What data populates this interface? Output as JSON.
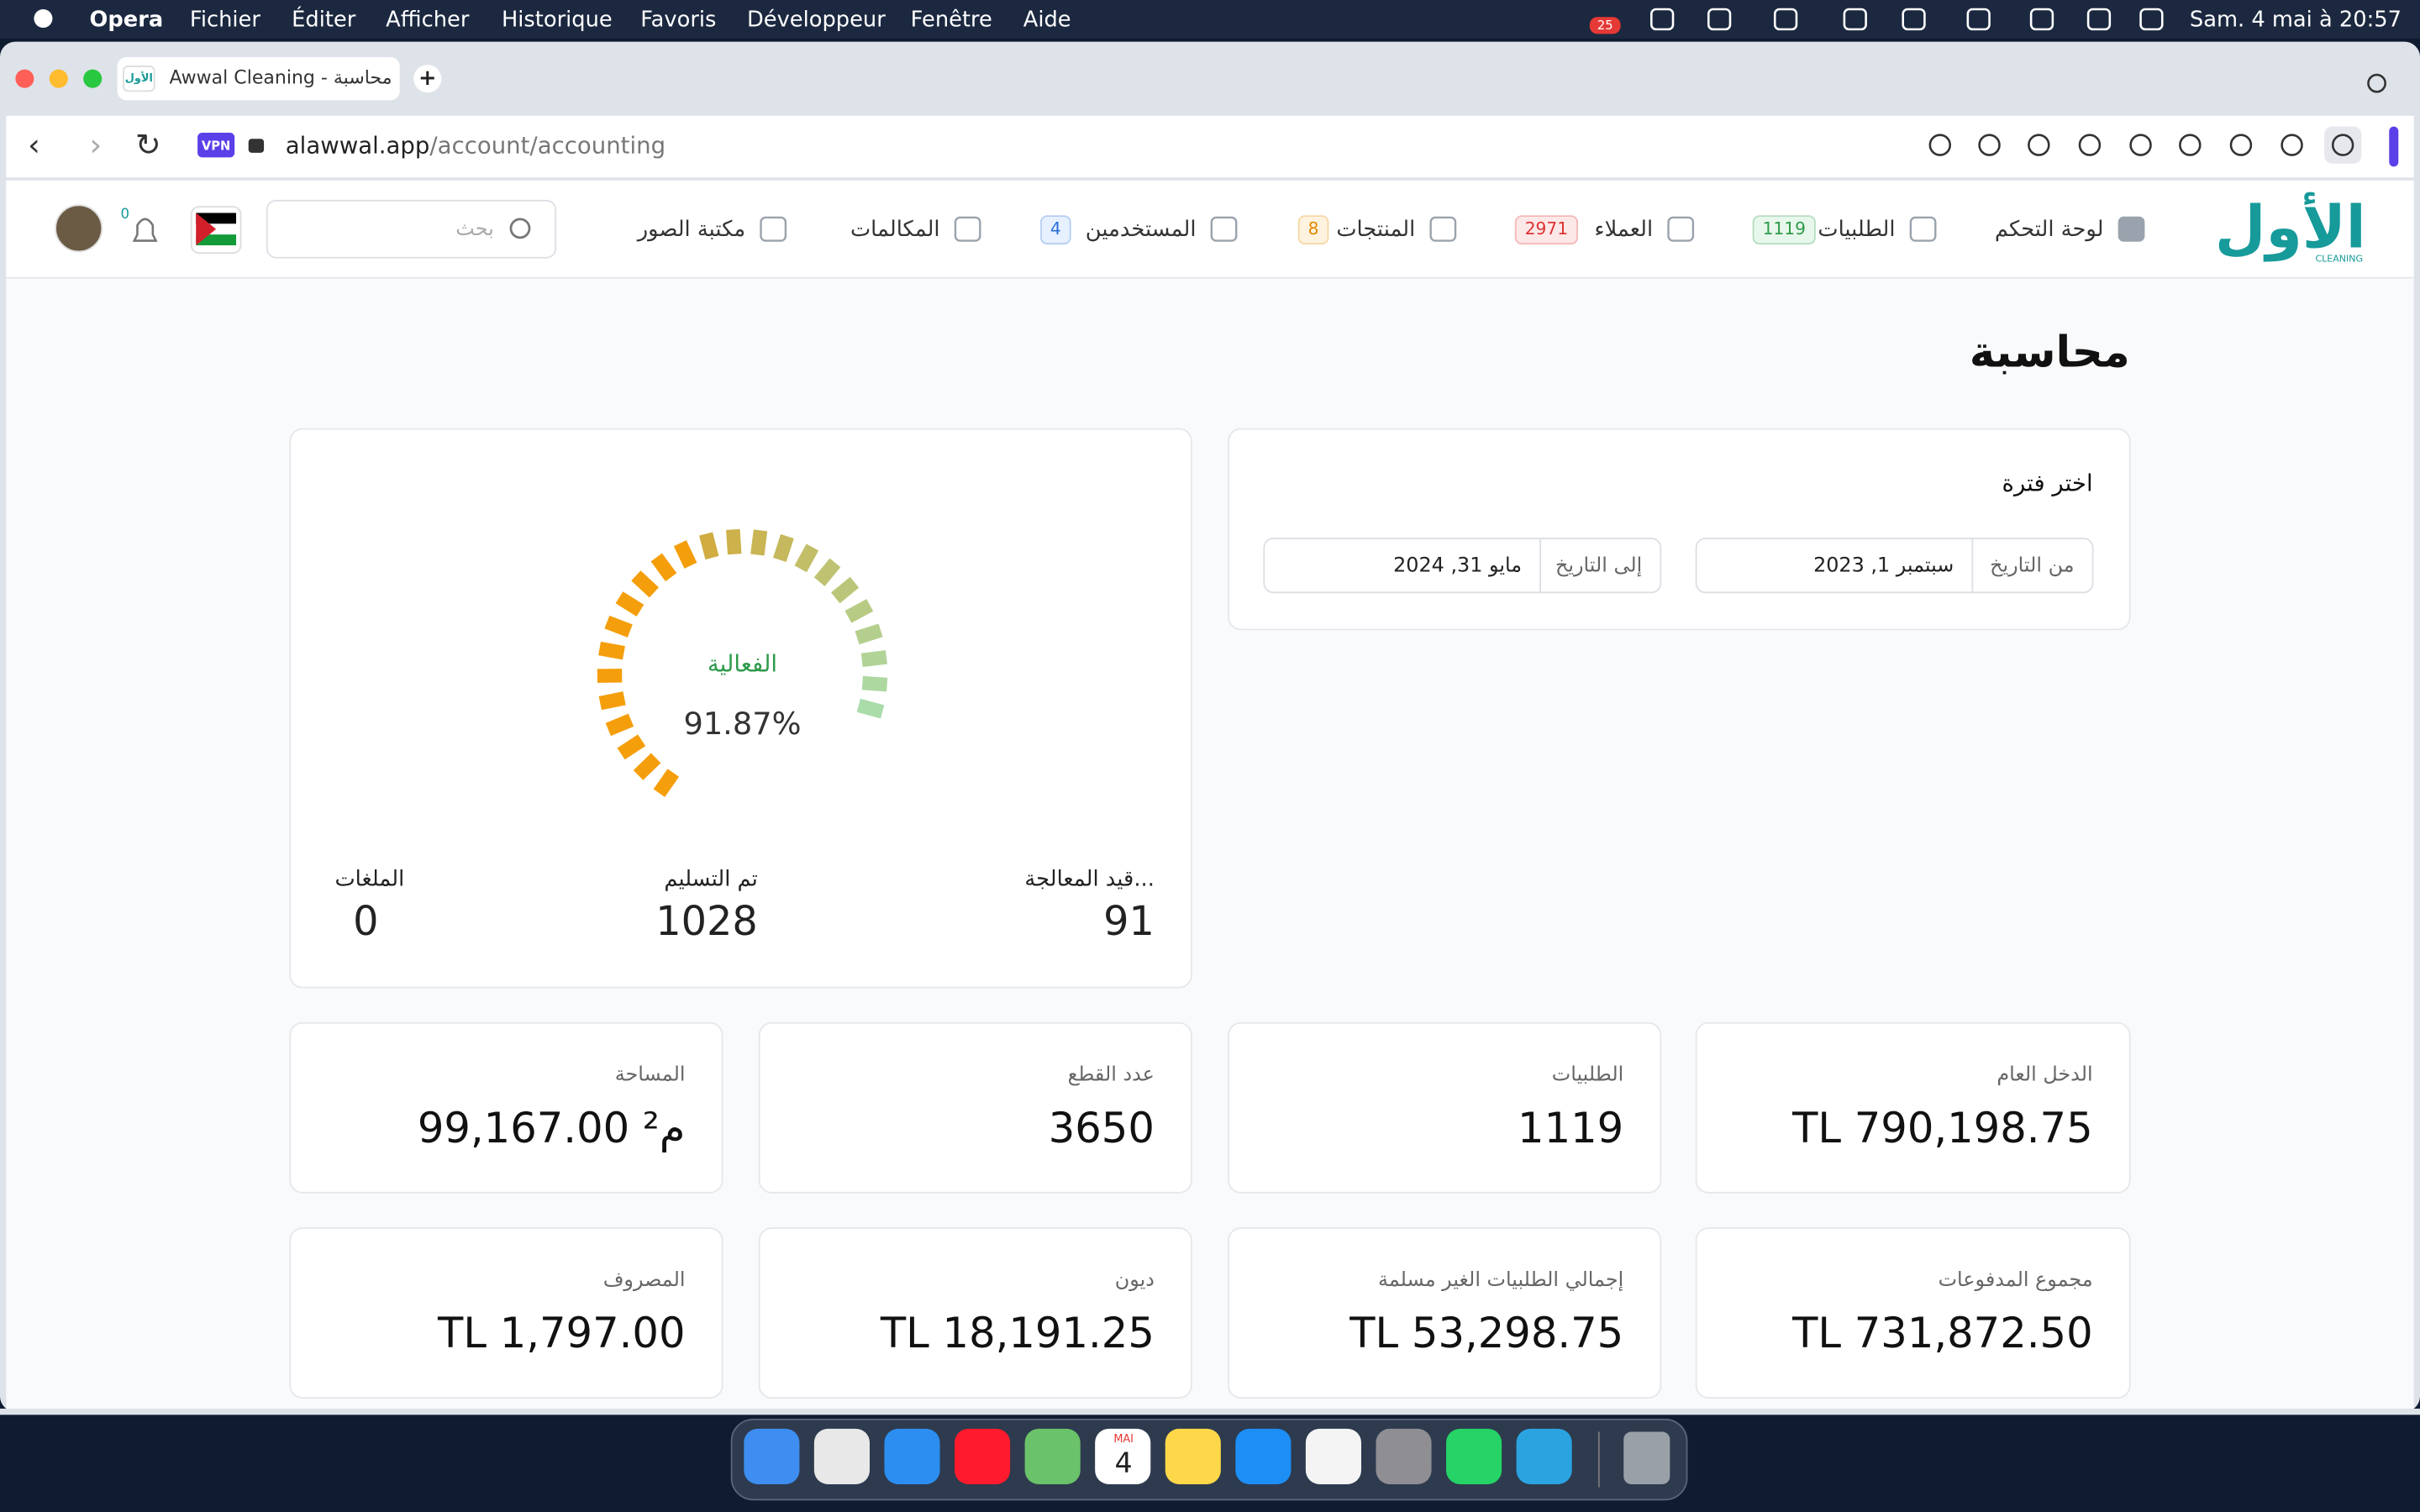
{
  "menubar": {
    "app": "Opera",
    "menus": [
      "Fichier",
      "Éditer",
      "Afficher",
      "Historique",
      "Favoris",
      "Développeur",
      "Fenêtre",
      "Aide"
    ],
    "clock": "Sam. 4 mai à 20:57",
    "badge": "25"
  },
  "browser": {
    "tab_icon": "الأول",
    "tab_title": "Awwal Cleaning - محاسبة",
    "vpn": "VPN",
    "domain": "alawwal.app",
    "path": "/account/accounting"
  },
  "nav": {
    "logo": "الأول",
    "logo_sub": "CLEANING",
    "items": [
      {
        "label": "لوحة التحكم"
      },
      {
        "label": "الطلبيات",
        "badge": "1119"
      },
      {
        "label": "العملاء",
        "badge": "2971"
      },
      {
        "label": "المنتجات",
        "badge": "8"
      },
      {
        "label": "المستخدمين",
        "badge": "4"
      },
      {
        "label": "المكالمات"
      },
      {
        "label": "مكتبة الصور"
      }
    ],
    "search": "بحث",
    "notifications": "0"
  },
  "page": {
    "title": "محاسبة",
    "period": {
      "title": "اختر فترة",
      "from_label": "من التاريخ",
      "from_value": "سبتمبر 1, 2023",
      "to_label": "إلى التاريخ",
      "to_value": "مايو 31, 2024"
    },
    "gauge": {
      "label": "الفعالية",
      "value": "91.87%",
      "stats": [
        {
          "label": "قيد المعالجة...",
          "value": "91"
        },
        {
          "label": "تم التسليم",
          "value": "1028"
        },
        {
          "label": "الملغات",
          "value": "0"
        }
      ]
    },
    "cards": [
      {
        "label": "الدخل العام",
        "value": "TL  790,198.75"
      },
      {
        "label": "الطلبيات",
        "value": "1119"
      },
      {
        "label": "عدد القطع",
        "value": "3650"
      },
      {
        "label": "المساحة",
        "value": "99,167.00 م²"
      },
      {
        "label": "مجموع المدفوعات",
        "value": "TL  731,872.50"
      },
      {
        "label": "إجمالي الطلبيات الغير مسلمة",
        "value": "TL  53,298.75"
      },
      {
        "label": "ديون",
        "value": "TL  18,191.25"
      },
      {
        "label": "المصروف",
        "value": "TL  1,797.00"
      }
    ]
  },
  "dock": {
    "calendar_month": "MAI",
    "calendar_day": "4"
  }
}
